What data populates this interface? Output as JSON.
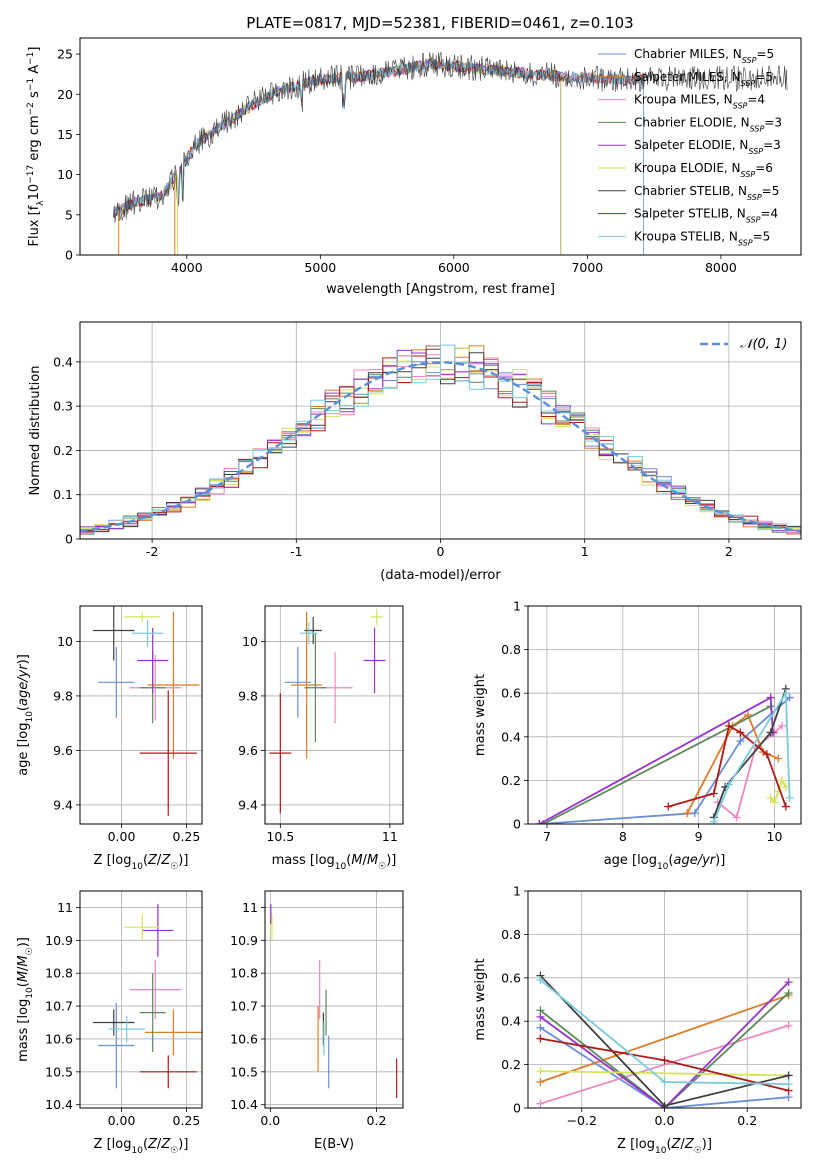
{
  "title": "PLATE=0817, MJD=52381, FIBERID=0461, z=0.103",
  "colors": {
    "Chabrier MILES": "#6a8fd8",
    "Salpeter MILES": "#e07b27",
    "Kroupa MILES": "#ee88c4",
    "Chabrier ELODIE": "#5b8a5b",
    "Salpeter ELODIE": "#9933cc",
    "Kroupa ELODIE": "#d6e45c",
    "Chabrier STELIB": "#404040",
    "Salpeter STELIB": "#b01a1a",
    "Kroupa STELIB": "#79cbdc"
  },
  "chart_data": [
    {
      "type": "line",
      "id": "spectrum",
      "xlabel": "wavelength [Angstrom, rest frame]",
      "ylabel": "Flux [f_λ10^-17 erg cm^-2 s^-1 A^-1]",
      "xlim": [
        3200,
        8600
      ],
      "ylim": [
        0,
        27
      ],
      "xticks": [
        4000,
        5000,
        6000,
        7000,
        8000
      ],
      "yticks": [
        0,
        5,
        10,
        15,
        20,
        25
      ],
      "grid": false,
      "legend_position": "right",
      "legend": [
        {
          "model": "Chabrier MILES",
          "nssp": 5
        },
        {
          "model": "Salpeter MILES",
          "nssp": 5
        },
        {
          "model": "Kroupa MILES",
          "nssp": 4
        },
        {
          "model": "Chabrier ELODIE",
          "nssp": 3
        },
        {
          "model": "Salpeter ELODIE",
          "nssp": 3
        },
        {
          "model": "Kroupa ELODIE",
          "nssp": 6
        },
        {
          "model": "Chabrier STELIB",
          "nssp": 5
        },
        {
          "model": "Salpeter STELIB",
          "nssp": 4
        },
        {
          "model": "Kroupa STELIB",
          "nssp": 5
        }
      ],
      "continuum": {
        "x": [
          3450,
          3600,
          3800,
          3950,
          4050,
          4300,
          4500,
          4700,
          4900,
          5100,
          5300,
          5600,
          5800,
          6000,
          6300,
          6600,
          7000,
          7300,
          7500
        ],
        "y": [
          5.2,
          6.5,
          7.2,
          10.5,
          13.5,
          16.5,
          18.8,
          20.5,
          21.5,
          22.0,
          22.2,
          23.0,
          23.8,
          23.5,
          23.0,
          22.5,
          22.0,
          21.8,
          22.0
        ]
      }
    },
    {
      "type": "histogram",
      "id": "residuals",
      "xlabel": "(data-model)/error",
      "ylabel": "Normed distribution",
      "xlim": [
        -2.5,
        2.5
      ],
      "ylim": [
        0,
        0.49
      ],
      "xticks": [
        -2,
        -1,
        0,
        1,
        2
      ],
      "yticks": [
        0.0,
        0.1,
        0.2,
        0.3,
        0.4
      ],
      "grid": true,
      "legend_position": "top-right",
      "legend": [
        "𝒩(0, 1)"
      ],
      "bin_width": 0.1
    },
    {
      "type": "scatter",
      "id": "age-vs-Z",
      "xlabel": "Z [log10(Z/Z☉)]",
      "ylabel": "age  [log10(age/yr)]",
      "xlim": [
        -0.16,
        0.31
      ],
      "ylim": [
        9.33,
        10.13
      ],
      "xticks": [
        0.0,
        0.25
      ],
      "xtick_labels": [
        "0.00",
        "0.25"
      ],
      "yticks": [
        9.4,
        9.6,
        9.8,
        10.0
      ],
      "grid": true,
      "points": [
        {
          "model": "Chabrier MILES",
          "x": -0.02,
          "y": 9.85,
          "xerr": 0.07,
          "yerr": 0.13
        },
        {
          "model": "Salpeter MILES",
          "x": 0.2,
          "y": 9.84,
          "xerr": 0.1,
          "yerr": 0.27
        },
        {
          "model": "Kroupa MILES",
          "x": 0.13,
          "y": 9.83,
          "xerr": 0.1,
          "yerr": 0.12
        },
        {
          "model": "Chabrier ELODIE",
          "x": 0.12,
          "y": 9.83,
          "xerr": 0.05,
          "yerr": 0.13
        },
        {
          "model": "Salpeter ELODIE",
          "x": 0.12,
          "y": 9.93,
          "xerr": 0.06,
          "yerr": 0.12
        },
        {
          "model": "Kroupa ELODIE",
          "x": 0.08,
          "y": 10.09,
          "xerr": 0.07,
          "yerr": 0.02
        },
        {
          "model": "Chabrier STELIB",
          "x": -0.03,
          "y": 10.04,
          "xerr": 0.08,
          "yerr": 0.11
        },
        {
          "model": "Salpeter STELIB",
          "x": 0.18,
          "y": 9.59,
          "xerr": 0.11,
          "yerr": 0.23
        },
        {
          "model": "Kroupa STELIB",
          "x": 0.1,
          "y": 10.03,
          "xerr": 0.06,
          "yerr": 0.05
        }
      ]
    },
    {
      "type": "scatter",
      "id": "age-vs-mass",
      "xlabel": "mass [log10(M/M☉)]",
      "xlim": [
        10.43,
        11.06
      ],
      "ylim": [
        9.33,
        10.13
      ],
      "xticks": [
        10.5,
        11.0
      ],
      "yticks": [
        9.4,
        9.6,
        9.8,
        10.0
      ],
      "grid": true,
      "points": [
        {
          "model": "Chabrier MILES",
          "x": 10.58,
          "y": 9.85,
          "xerr": 0.06,
          "yerr": 0.13
        },
        {
          "model": "Salpeter MILES",
          "x": 10.62,
          "y": 9.84,
          "xerr": 0.07,
          "yerr": 0.27
        },
        {
          "model": "Kroupa MILES",
          "x": 10.75,
          "y": 9.83,
          "xerr": 0.08,
          "yerr": 0.13
        },
        {
          "model": "Chabrier ELODIE",
          "x": 10.66,
          "y": 9.83,
          "xerr": 0.05,
          "yerr": 0.2
        },
        {
          "model": "Salpeter ELODIE",
          "x": 10.93,
          "y": 9.93,
          "xerr": 0.05,
          "yerr": 0.12
        },
        {
          "model": "Kroupa ELODIE",
          "x": 10.94,
          "y": 10.09,
          "xerr": 0.03,
          "yerr": 0.03
        },
        {
          "model": "Chabrier STELIB",
          "x": 10.65,
          "y": 10.04,
          "xerr": 0.04,
          "yerr": 0.05
        },
        {
          "model": "Salpeter STELIB",
          "x": 10.5,
          "y": 9.59,
          "xerr": 0.05,
          "yerr": 0.22
        },
        {
          "model": "Kroupa STELIB",
          "x": 10.63,
          "y": 10.03,
          "xerr": 0.04,
          "yerr": 0.04
        }
      ]
    },
    {
      "type": "line",
      "id": "weight-vs-age",
      "xlabel": "age  [log10(age/yr)]",
      "ylabel": "mass weight",
      "xlim": [
        6.75,
        10.35
      ],
      "ylim": [
        0,
        1
      ],
      "xticks": [
        7,
        8,
        9,
        10
      ],
      "yticks": [
        0.0,
        0.2,
        0.4,
        0.6,
        0.8,
        1.0
      ],
      "grid": true,
      "series": [
        {
          "model": "Chabrier MILES",
          "x": [
            6.9,
            8.95,
            9.55,
            10.2
          ],
          "y": [
            0.0,
            0.05,
            0.38,
            0.58
          ]
        },
        {
          "model": "Salpeter MILES",
          "x": [
            8.85,
            9.45,
            9.65,
            9.85,
            10.05
          ],
          "y": [
            0.05,
            0.45,
            0.5,
            0.33,
            0.3
          ]
        },
        {
          "model": "Kroupa MILES",
          "x": [
            9.25,
            9.5,
            9.75,
            10.0,
            10.1
          ],
          "y": [
            0.1,
            0.03,
            0.35,
            0.42,
            0.45
          ]
        },
        {
          "model": "Chabrier ELODIE",
          "x": [
            6.95,
            9.95
          ],
          "y": [
            0.0,
            0.54
          ]
        },
        {
          "model": "Salpeter ELODIE",
          "x": [
            6.9,
            9.95,
            9.98
          ],
          "y": [
            0.0,
            0.58,
            0.42
          ]
        },
        {
          "model": "Kroupa ELODIE",
          "x": [
            9.95,
            10.0,
            10.05,
            10.1,
            10.15
          ],
          "y": [
            0.12,
            0.1,
            0.15,
            0.2,
            0.17
          ]
        },
        {
          "model": "Chabrier STELIB",
          "x": [
            9.2,
            9.35,
            9.95,
            10.15
          ],
          "y": [
            0.03,
            0.17,
            0.42,
            0.62
          ]
        },
        {
          "model": "Salpeter STELIB",
          "x": [
            8.6,
            9.2,
            9.4,
            9.55,
            9.9,
            10.15
          ],
          "y": [
            0.08,
            0.14,
            0.45,
            0.42,
            0.32,
            0.08
          ]
        },
        {
          "model": "Kroupa STELIB",
          "x": [
            9.2,
            9.4,
            10.15,
            10.2
          ],
          "y": [
            0.01,
            0.18,
            0.6,
            0.12
          ]
        }
      ]
    },
    {
      "type": "scatter",
      "id": "mass-vs-Z",
      "xlabel": "Z [log10(Z/Z☉)]",
      "ylabel": "mass [log10(M/M☉)]",
      "xlim": [
        -0.16,
        0.31
      ],
      "ylim": [
        10.39,
        11.05
      ],
      "xticks": [
        0.0,
        0.25
      ],
      "xtick_labels": [
        "0.00",
        "0.25"
      ],
      "yticks": [
        10.4,
        10.5,
        10.6,
        10.7,
        10.8,
        10.9,
        11.0
      ],
      "grid": true,
      "points": [
        {
          "model": "Chabrier MILES",
          "x": -0.02,
          "y": 10.58,
          "xerr": 0.07,
          "yerr": 0.13
        },
        {
          "model": "Salpeter MILES",
          "x": 0.2,
          "y": 10.62,
          "xerr": 0.11,
          "yerr": 0.07
        },
        {
          "model": "Kroupa MILES",
          "x": 0.13,
          "y": 10.75,
          "xerr": 0.1,
          "yerr": 0.09
        },
        {
          "model": "Chabrier ELODIE",
          "x": 0.12,
          "y": 10.68,
          "xerr": 0.05,
          "yerr": 0.12
        },
        {
          "model": "Salpeter ELODIE",
          "x": 0.14,
          "y": 10.93,
          "xerr": 0.06,
          "yerr": 0.08
        },
        {
          "model": "Kroupa ELODIE",
          "x": 0.08,
          "y": 10.94,
          "xerr": 0.07,
          "yerr": 0.04
        },
        {
          "model": "Chabrier STELIB",
          "x": -0.03,
          "y": 10.65,
          "xerr": 0.08,
          "yerr": 0.04
        },
        {
          "model": "Salpeter STELIB",
          "x": 0.18,
          "y": 10.5,
          "xerr": 0.11,
          "yerr": 0.05
        },
        {
          "model": "Kroupa STELIB",
          "x": 0.02,
          "y": 10.63,
          "xerr": 0.07,
          "yerr": 0.04
        }
      ]
    },
    {
      "type": "scatter",
      "id": "mass-vs-EBV",
      "xlabel": "E(B-V)",
      "xlim": [
        -0.01,
        0.25
      ],
      "ylim": [
        10.39,
        11.05
      ],
      "xticks": [
        0.0,
        0.2
      ],
      "xtick_labels": [
        "0.0",
        "0.2"
      ],
      "yticks": [
        10.4,
        10.5,
        10.6,
        10.7,
        10.8,
        10.9,
        11.0
      ],
      "grid": true,
      "points": [
        {
          "model": "Chabrier MILES",
          "x": 0.11,
          "y": 10.53,
          "yerr": 0.08
        },
        {
          "model": "Salpeter MILES",
          "x": 0.09,
          "y": 10.6,
          "yerr": 0.1
        },
        {
          "model": "Kroupa MILES",
          "x": 0.093,
          "y": 10.75,
          "yerr": 0.09
        },
        {
          "model": "Chabrier ELODIE",
          "x": 0.105,
          "y": 10.68,
          "yerr": 0.07
        },
        {
          "model": "Salpeter ELODIE",
          "x": 0.001,
          "y": 10.98,
          "yerr": 0.03
        },
        {
          "model": "Kroupa ELODIE",
          "x": 0.003,
          "y": 10.94,
          "yerr": 0.04
        },
        {
          "model": "Chabrier STELIB",
          "x": 0.1,
          "y": 10.63,
          "yerr": 0.05
        },
        {
          "model": "Salpeter STELIB",
          "x": 0.238,
          "y": 10.48,
          "yerr": 0.06
        },
        {
          "model": "Kroupa STELIB",
          "x": 0.101,
          "y": 10.6,
          "yerr": 0.05
        }
      ]
    },
    {
      "type": "line",
      "id": "weight-vs-Z",
      "xlabel": "Z [log10(Z/Z☉)]",
      "ylabel": "mass weight",
      "xlim": [
        -0.33,
        0.33
      ],
      "ylim": [
        0,
        1
      ],
      "xticks": [
        -0.2,
        0.0,
        0.2
      ],
      "xtick_labels": [
        "−0.2",
        "0.0",
        "0.2"
      ],
      "yticks": [
        0.0,
        0.2,
        0.4,
        0.6,
        0.8,
        1.0
      ],
      "grid": true,
      "series": [
        {
          "model": "Chabrier MILES",
          "x": [
            -0.3,
            0.0,
            0.3
          ],
          "y": [
            0.37,
            0.0,
            0.05
          ]
        },
        {
          "model": "Salpeter MILES",
          "x": [
            -0.3,
            0.3
          ],
          "y": [
            0.12,
            0.52
          ]
        },
        {
          "model": "Kroupa MILES",
          "x": [
            -0.3,
            0.3
          ],
          "y": [
            0.02,
            0.38
          ]
        },
        {
          "model": "Chabrier ELODIE",
          "x": [
            -0.3,
            0.0,
            0.3
          ],
          "y": [
            0.45,
            0.0,
            0.53
          ]
        },
        {
          "model": "Salpeter ELODIE",
          "x": [
            -0.3,
            0.0,
            0.3
          ],
          "y": [
            0.42,
            0.0,
            0.58
          ]
        },
        {
          "model": "Kroupa ELODIE",
          "x": [
            -0.3,
            0.3
          ],
          "y": [
            0.17,
            0.15
          ]
        },
        {
          "model": "Chabrier STELIB",
          "x": [
            -0.3,
            0.0,
            0.3
          ],
          "y": [
            0.61,
            0.01,
            0.15
          ]
        },
        {
          "model": "Salpeter STELIB",
          "x": [
            -0.3,
            0.0,
            0.3
          ],
          "y": [
            0.32,
            0.22,
            0.08
          ]
        },
        {
          "model": "Kroupa STELIB",
          "x": [
            -0.3,
            0.0,
            0.3
          ],
          "y": [
            0.59,
            0.12,
            0.11
          ]
        }
      ]
    }
  ]
}
